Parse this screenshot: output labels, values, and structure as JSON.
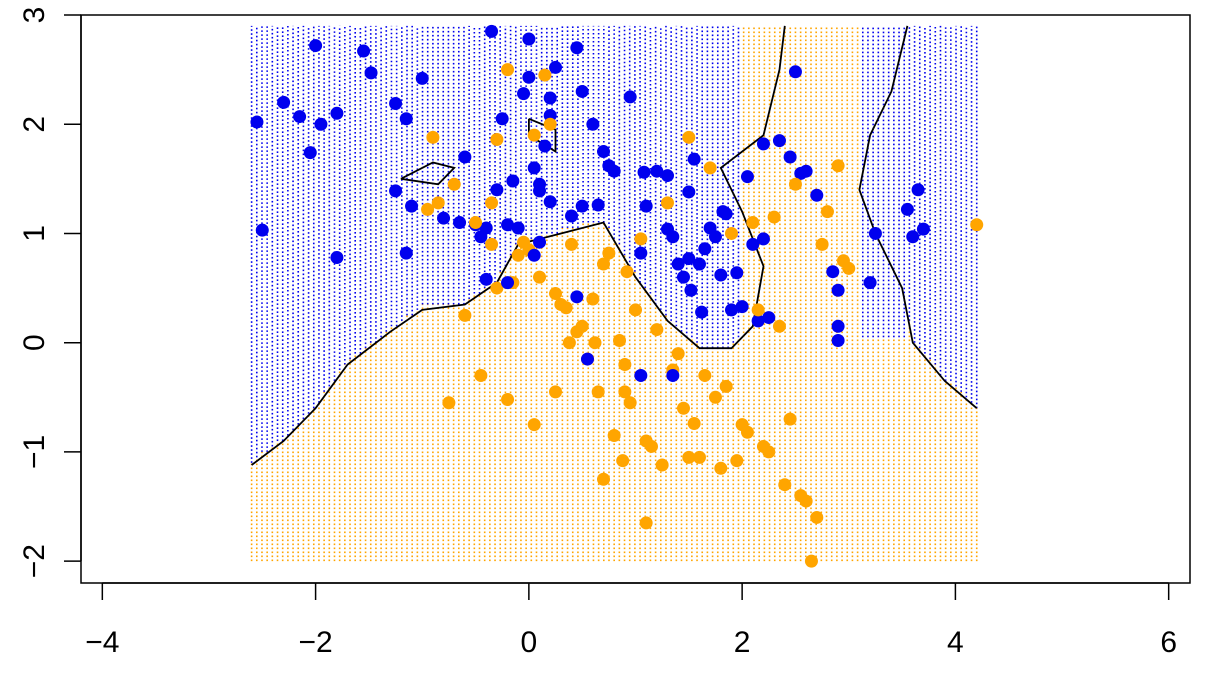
{
  "chart_data": {
    "type": "scatter",
    "title": "",
    "xlabel": "",
    "ylabel": "",
    "xlim": [
      -4.2,
      6.2
    ],
    "ylim": [
      -2.2,
      3.0
    ],
    "grid": false,
    "legend": "none",
    "x_ticks": [
      -4,
      -2,
      0,
      2,
      4,
      6
    ],
    "y_ticks": [
      -2,
      -1,
      0,
      1,
      2,
      3
    ],
    "x_tick_labels": [
      "−4",
      "−2",
      "0",
      "2",
      "4",
      "6"
    ],
    "y_tick_labels": [
      "−2",
      "−1",
      "0",
      "1",
      "2",
      "3"
    ],
    "colors": {
      "class_a": "#0000ee",
      "class_b": "#ffa500",
      "boundary": "#000000"
    },
    "region_grid": {
      "x_range": [
        -2.6,
        4.2
      ],
      "y_range": [
        -2.0,
        2.9
      ]
    },
    "decision_boundaries": [
      [
        [
          -2.6,
          -1.12
        ],
        [
          -2.3,
          -0.9
        ],
        [
          -2.0,
          -0.6
        ],
        [
          -1.7,
          -0.2
        ],
        [
          -1.3,
          0.1
        ],
        [
          -1.0,
          0.3
        ],
        [
          -0.6,
          0.35
        ],
        [
          -0.3,
          0.55
        ],
        [
          -0.1,
          0.9
        ],
        [
          0.3,
          1.0
        ],
        [
          0.7,
          1.1
        ],
        [
          1.0,
          0.6
        ],
        [
          1.3,
          0.2
        ],
        [
          1.6,
          -0.05
        ],
        [
          1.9,
          -0.05
        ],
        [
          2.1,
          0.15
        ],
        [
          2.2,
          0.7
        ],
        [
          2.0,
          1.2
        ],
        [
          1.8,
          1.6
        ],
        [
          2.2,
          1.9
        ],
        [
          2.35,
          2.5
        ],
        [
          2.4,
          2.9
        ]
      ],
      [
        [
          3.55,
          2.9
        ],
        [
          3.4,
          2.3
        ],
        [
          3.2,
          1.9
        ],
        [
          3.1,
          1.4
        ],
        [
          3.25,
          1.0
        ],
        [
          3.5,
          0.5
        ],
        [
          3.6,
          0.0
        ],
        [
          3.9,
          -0.35
        ],
        [
          4.2,
          -0.6
        ]
      ],
      [
        [
          -1.2,
          1.5
        ],
        [
          -0.9,
          1.65
        ],
        [
          -0.7,
          1.6
        ],
        [
          -0.85,
          1.45
        ],
        [
          -1.2,
          1.5
        ]
      ],
      [
        [
          0.0,
          2.05
        ],
        [
          0.25,
          1.95
        ],
        [
          0.25,
          1.75
        ],
        [
          0.0,
          1.9
        ],
        [
          0.0,
          2.05
        ]
      ]
    ],
    "series": [
      {
        "color": "#0000ee",
        "points": [
          [
            -2.55,
            2.02
          ],
          [
            -2.5,
            1.03
          ],
          [
            -2.3,
            2.2
          ],
          [
            -2.15,
            2.07
          ],
          [
            -2.05,
            1.74
          ],
          [
            -2.0,
            2.72
          ],
          [
            -1.95,
            2.0
          ],
          [
            -1.8,
            2.1
          ],
          [
            -1.8,
            0.78
          ],
          [
            -1.55,
            2.67
          ],
          [
            -1.48,
            2.47
          ],
          [
            -1.25,
            1.39
          ],
          [
            -1.25,
            2.19
          ],
          [
            -1.15,
            2.05
          ],
          [
            -1.15,
            0.82
          ],
          [
            -1.1,
            1.25
          ],
          [
            -1.0,
            2.42
          ],
          [
            -0.8,
            1.14
          ],
          [
            -0.65,
            1.1
          ],
          [
            -0.6,
            1.7
          ],
          [
            -0.5,
            1.08
          ],
          [
            -0.45,
            0.97
          ],
          [
            -0.4,
            1.05
          ],
          [
            -0.35,
            2.85
          ],
          [
            -0.3,
            1.4
          ],
          [
            -0.25,
            2.05
          ],
          [
            -0.2,
            1.08
          ],
          [
            -0.15,
            1.48
          ],
          [
            -0.1,
            1.05
          ],
          [
            -0.05,
            2.28
          ],
          [
            0.0,
            2.78
          ],
          [
            0.0,
            2.43
          ],
          [
            0.05,
            1.6
          ],
          [
            0.1,
            1.45
          ],
          [
            0.1,
            1.39
          ],
          [
            0.1,
            0.92
          ],
          [
            0.15,
            1.8
          ],
          [
            0.2,
            2.24
          ],
          [
            0.2,
            2.08
          ],
          [
            0.2,
            1.29
          ],
          [
            0.25,
            2.52
          ],
          [
            0.4,
            1.16
          ],
          [
            0.45,
            2.7
          ],
          [
            0.5,
            2.3
          ],
          [
            0.5,
            1.25
          ],
          [
            0.6,
            2.0
          ],
          [
            0.65,
            1.26
          ],
          [
            0.7,
            1.75
          ],
          [
            0.75,
            1.62
          ],
          [
            0.8,
            1.57
          ],
          [
            0.95,
            2.25
          ],
          [
            1.05,
            0.82
          ],
          [
            1.08,
            1.56
          ],
          [
            1.1,
            1.25
          ],
          [
            1.2,
            1.57
          ],
          [
            1.3,
            1.53
          ],
          [
            1.3,
            1.04
          ],
          [
            1.35,
            0.97
          ],
          [
            1.4,
            0.72
          ],
          [
            1.45,
            0.6
          ],
          [
            1.5,
            0.77
          ],
          [
            1.5,
            1.38
          ],
          [
            1.52,
            0.48
          ],
          [
            1.55,
            1.68
          ],
          [
            1.6,
            0.72
          ],
          [
            1.62,
            0.28
          ],
          [
            1.65,
            0.86
          ],
          [
            1.7,
            1.05
          ],
          [
            1.75,
            0.97
          ],
          [
            1.8,
            0.62
          ],
          [
            1.82,
            1.2
          ],
          [
            1.85,
            1.18
          ],
          [
            1.9,
            0.3
          ],
          [
            1.95,
            0.64
          ],
          [
            2.0,
            0.33
          ],
          [
            2.05,
            1.52
          ],
          [
            2.1,
            0.9
          ],
          [
            2.15,
            0.2
          ],
          [
            2.2,
            1.82
          ],
          [
            2.25,
            0.23
          ],
          [
            2.35,
            1.85
          ],
          [
            2.45,
            1.7
          ],
          [
            2.5,
            2.48
          ],
          [
            2.55,
            1.55
          ],
          [
            2.6,
            1.57
          ],
          [
            2.7,
            1.35
          ],
          [
            2.85,
            0.65
          ],
          [
            2.9,
            0.48
          ],
          [
            2.9,
            0.15
          ],
          [
            3.25,
            1.0
          ],
          [
            3.55,
            1.22
          ],
          [
            3.6,
            0.97
          ],
          [
            3.65,
            1.4
          ],
          [
            3.7,
            1.04
          ],
          [
            2.2,
            0.95
          ]
        ]
      },
      {
        "color": "#ffa500",
        "points": [
          [
            -0.95,
            1.22
          ],
          [
            -0.9,
            1.88
          ],
          [
            -0.85,
            1.28
          ],
          [
            -0.7,
            1.45
          ],
          [
            -0.6,
            0.25
          ],
          [
            -0.5,
            1.1
          ],
          [
            -0.35,
            0.9
          ],
          [
            -0.35,
            1.28
          ],
          [
            -0.3,
            1.86
          ],
          [
            -0.3,
            0.5
          ],
          [
            -0.2,
            2.5
          ],
          [
            -0.15,
            0.55
          ],
          [
            -0.1,
            0.8
          ],
          [
            -0.05,
            0.92
          ],
          [
            0.0,
            0.85
          ],
          [
            0.05,
            1.9
          ],
          [
            0.1,
            0.6
          ],
          [
            0.15,
            2.45
          ],
          [
            0.2,
            2.0
          ],
          [
            0.25,
            0.45
          ],
          [
            0.3,
            0.35
          ],
          [
            0.35,
            0.32
          ],
          [
            0.38,
            0.0
          ],
          [
            0.4,
            0.9
          ],
          [
            0.45,
            0.1
          ],
          [
            0.5,
            0.15
          ],
          [
            0.55,
            -0.15
          ],
          [
            0.6,
            0.4
          ],
          [
            0.62,
            0.0
          ],
          [
            0.65,
            -0.45
          ],
          [
            0.7,
            0.72
          ],
          [
            0.75,
            0.82
          ],
          [
            0.8,
            -0.85
          ],
          [
            0.85,
            0.02
          ],
          [
            0.88,
            -1.08
          ],
          [
            0.9,
            -0.2
          ],
          [
            0.92,
            0.65
          ],
          [
            0.95,
            -0.55
          ],
          [
            1.0,
            0.3
          ],
          [
            1.05,
            0.95
          ],
          [
            1.1,
            -0.9
          ],
          [
            1.15,
            -0.95
          ],
          [
            1.2,
            0.12
          ],
          [
            1.25,
            -1.12
          ],
          [
            1.3,
            1.28
          ],
          [
            1.35,
            -0.25
          ],
          [
            1.4,
            -0.1
          ],
          [
            1.45,
            -0.6
          ],
          [
            1.5,
            1.88
          ],
          [
            1.55,
            -0.74
          ],
          [
            1.6,
            -1.05
          ],
          [
            1.65,
            -0.3
          ],
          [
            1.7,
            1.6
          ],
          [
            1.75,
            -0.5
          ],
          [
            1.8,
            -1.15
          ],
          [
            1.85,
            -0.4
          ],
          [
            1.9,
            1.0
          ],
          [
            2.0,
            -0.75
          ],
          [
            2.05,
            -0.82
          ],
          [
            2.1,
            1.1
          ],
          [
            2.15,
            0.3
          ],
          [
            2.2,
            -0.95
          ],
          [
            2.25,
            -1.0
          ],
          [
            2.3,
            1.15
          ],
          [
            2.35,
            0.15
          ],
          [
            2.4,
            -1.3
          ],
          [
            2.45,
            -0.7
          ],
          [
            2.5,
            1.45
          ],
          [
            2.55,
            -1.4
          ],
          [
            2.6,
            -1.45
          ],
          [
            2.65,
            -2.0
          ],
          [
            2.7,
            -1.6
          ],
          [
            2.75,
            0.9
          ],
          [
            2.8,
            1.2
          ],
          [
            2.9,
            1.62
          ],
          [
            2.95,
            0.75
          ],
          [
            3.0,
            0.68
          ],
          [
            4.2,
            1.08
          ],
          [
            -0.75,
            -0.55
          ],
          [
            -0.2,
            -0.52
          ],
          [
            0.05,
            -0.75
          ],
          [
            0.7,
            -1.25
          ],
          [
            1.1,
            -1.65
          ],
          [
            -0.45,
            -0.3
          ],
          [
            0.25,
            -0.45
          ],
          [
            0.9,
            -0.45
          ],
          [
            1.5,
            -1.05
          ],
          [
            1.95,
            -1.08
          ]
        ]
      },
      {
        "color": "#0000ee",
        "points": [
          [
            0.55,
            -0.15
          ],
          [
            1.05,
            -0.3
          ],
          [
            1.35,
            -0.3
          ],
          [
            2.9,
            0.02
          ],
          [
            3.2,
            0.55
          ],
          [
            -0.2,
            0.55
          ],
          [
            0.05,
            0.8
          ],
          [
            -0.4,
            0.58
          ],
          [
            0.45,
            0.42
          ]
        ]
      }
    ]
  }
}
